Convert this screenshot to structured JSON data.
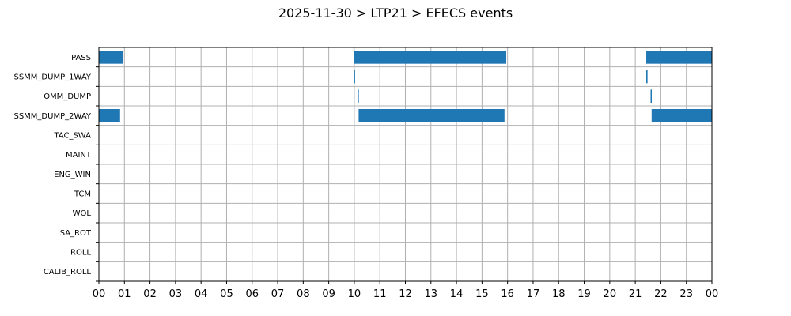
{
  "title": "2025-11-30 > LTP21 > EFECS events",
  "colors": {
    "bar": "#1f77b4",
    "grid": "#b0b0b0"
  },
  "chart_data": {
    "type": "gantt",
    "title": "2025-11-30 > LTP21 > EFECS events",
    "x_unit": "hour of day",
    "xlim": [
      0,
      24
    ],
    "x_tick_labels": [
      "00",
      "01",
      "02",
      "03",
      "04",
      "05",
      "06",
      "07",
      "08",
      "09",
      "10",
      "11",
      "12",
      "13",
      "14",
      "15",
      "16",
      "17",
      "18",
      "19",
      "20",
      "21",
      "22",
      "23",
      "00"
    ],
    "categories": [
      "PASS",
      "SSMM_DUMP_1WAY",
      "OMM_DUMP",
      "SSMM_DUMP_2WAY",
      "TAC_SWA",
      "MAINT",
      "ENG_WIN",
      "TCM",
      "WOL",
      "SA_ROT",
      "ROLL",
      "CALIB_ROLL"
    ],
    "grid": true,
    "events": [
      {
        "category": "PASS",
        "start": 0.0,
        "end": 0.93
      },
      {
        "category": "PASS",
        "start": 9.98,
        "end": 15.95
      },
      {
        "category": "PASS",
        "start": 21.43,
        "end": 24.0
      },
      {
        "category": "SSMM_DUMP_1WAY",
        "start": 9.98,
        "end": 10.03
      },
      {
        "category": "SSMM_DUMP_1WAY",
        "start": 21.43,
        "end": 21.48
      },
      {
        "category": "OMM_DUMP",
        "start": 10.13,
        "end": 10.17
      },
      {
        "category": "OMM_DUMP",
        "start": 21.6,
        "end": 21.64
      },
      {
        "category": "SSMM_DUMP_2WAY",
        "start": 0.0,
        "end": 0.83
      },
      {
        "category": "SSMM_DUMP_2WAY",
        "start": 10.17,
        "end": 15.88
      },
      {
        "category": "SSMM_DUMP_2WAY",
        "start": 21.64,
        "end": 24.0
      }
    ]
  }
}
